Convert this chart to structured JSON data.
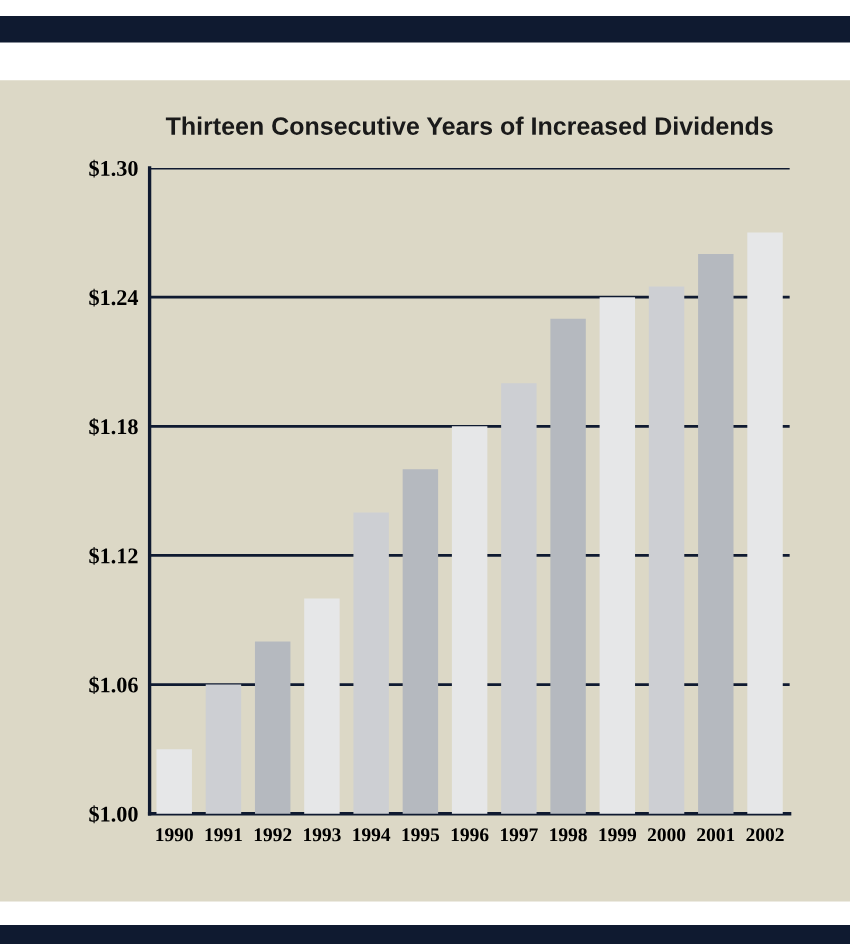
{
  "chart_data": {
    "type": "bar",
    "title": "Thirteen Consecutive Years of Increased Dividends",
    "categories": [
      "1990",
      "1991",
      "1992",
      "1993",
      "1994",
      "1995",
      "1996",
      "1997",
      "1998",
      "1999",
      "2000",
      "2001",
      "2002"
    ],
    "values": [
      1.03,
      1.06,
      1.08,
      1.1,
      1.14,
      1.16,
      1.18,
      1.2,
      1.23,
      1.24,
      1.245,
      1.26,
      1.27
    ],
    "colors": [
      "#e6e7e8",
      "#cdcfd3",
      "#b5b9bf",
      "#e6e7e8",
      "#cdcfd3",
      "#b5b9bf",
      "#e6e7e8",
      "#cdcfd3",
      "#b5b9bf",
      "#e6e7e8",
      "#cdcfd3",
      "#b5b9bf",
      "#e6e7e8"
    ],
    "ylim": [
      1.0,
      1.3
    ],
    "yticks": [
      {
        "value": 1.0,
        "label": "$1.00"
      },
      {
        "value": 1.06,
        "label": "$1.06"
      },
      {
        "value": 1.12,
        "label": "$1.12"
      },
      {
        "value": 1.18,
        "label": "$1.18"
      },
      {
        "value": 1.24,
        "label": "$1.24"
      },
      {
        "value": 1.3,
        "label": "$1.30"
      }
    ],
    "grid": "y"
  }
}
